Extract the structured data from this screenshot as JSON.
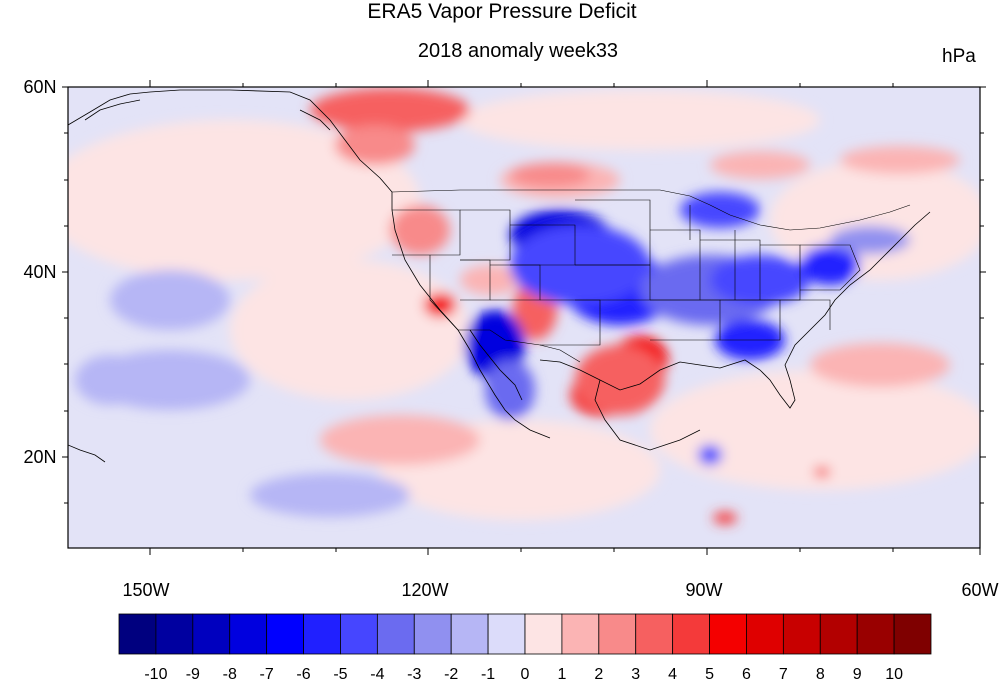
{
  "title": "ERA5 Vapor Pressure Deficit",
  "subtitle": "2018 anomaly week33",
  "units": "hPa",
  "lat_labels": [
    "60N",
    "40N",
    "20N"
  ],
  "lon_labels": [
    "150W",
    "120W",
    "90W",
    "60W"
  ],
  "map_extent": {
    "lon": [
      -160,
      -60
    ],
    "lat": [
      10,
      60
    ]
  },
  "colorbar": {
    "labels": [
      "-10",
      "-9",
      "-8",
      "-7",
      "-6",
      "-5",
      "-4",
      "-3",
      "-2",
      "-1",
      "0",
      "1",
      "2",
      "3",
      "4",
      "5",
      "6",
      "7",
      "8",
      "9",
      "10"
    ],
    "colors": [
      "#00007f",
      "#0000a0",
      "#0000bf",
      "#0000df",
      "#0000ff",
      "#2020ff",
      "#4646ff",
      "#6b6bf0",
      "#9090f0",
      "#b6b6f5",
      "#dcdcfa",
      "#fde4e4",
      "#fbb4b4",
      "#f88a8a",
      "#f66060",
      "#f43a3a",
      "#f40000",
      "#df0000",
      "#c80000",
      "#b20000",
      "#990000",
      "#7f0000"
    ]
  },
  "chart_data": {
    "type": "heatmap",
    "title": "ERA5 Vapor Pressure Deficit",
    "subtitle": "2018 anomaly week33",
    "units": "hPa",
    "x_range": [
      "160W",
      "60W"
    ],
    "y_range": [
      "10N",
      "60N"
    ],
    "levels": [
      -10,
      -9,
      -8,
      -7,
      -6,
      -5,
      -4,
      -3,
      -2,
      -1,
      0,
      1,
      2,
      3,
      4,
      5,
      6,
      7,
      8,
      9,
      10
    ],
    "anomaly_regions": [
      {
        "lat": 42.5,
        "lon": -101,
        "value": -7
      },
      {
        "lat": 38,
        "lon": -96,
        "value": -6
      },
      {
        "lat": 33,
        "lon": -113,
        "value": -6
      },
      {
        "lat": 32,
        "lon": -84,
        "value": -5
      },
      {
        "lat": 40.5,
        "lon": -75,
        "value": -5
      },
      {
        "lat": 45,
        "lon": -88,
        "value": -5
      },
      {
        "lat": 26,
        "lon": -100,
        "value": 6
      },
      {
        "lat": 30,
        "lon": -95,
        "value": 5
      },
      {
        "lat": 35,
        "lon": -118,
        "value": 5
      },
      {
        "lat": 33,
        "lon": -108,
        "value": 4
      },
      {
        "lat": 58.5,
        "lon": -117,
        "value": 5
      },
      {
        "lat": 53,
        "lon": -125,
        "value": 4
      },
      {
        "lat": 48,
        "lon": -108,
        "value": 3
      }
    ]
  }
}
